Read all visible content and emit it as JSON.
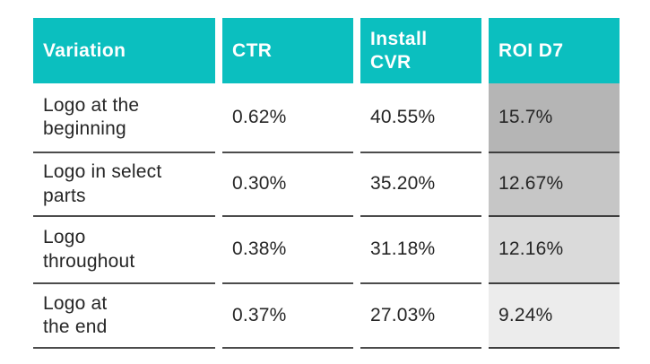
{
  "table": {
    "colors": {
      "header_bg": "#0bbfbf",
      "header_text": "#ffffff",
      "body_text": "#262626",
      "divider": "#4c4c4c",
      "roi_shade_row1": "#b5b5b5",
      "roi_shade_row2": "#c6c6c6",
      "roi_shade_row3": "#dadada",
      "roi_shade_row4": "#ececec"
    },
    "columns": {
      "variation": "Variation",
      "ctr": "CTR",
      "install_cvr": "Install\nCVR",
      "roi_d7": "ROI D7"
    },
    "rows": [
      {
        "variation": "Logo at the\nbeginning",
        "ctr": "0.62%",
        "install_cvr": "40.55%",
        "roi_d7": "15.7%",
        "roi_shade": "#b5b5b5"
      },
      {
        "variation": "Logo in select\nparts",
        "ctr": "0.30%",
        "install_cvr": "35.20%",
        "roi_d7": "12.67%",
        "roi_shade": "#c6c6c6"
      },
      {
        "variation": "Logo\nthroughout",
        "ctr": "0.38%",
        "install_cvr": "31.18%",
        "roi_d7": "12.16%",
        "roi_shade": "#dadada"
      },
      {
        "variation": "Logo at\nthe end",
        "ctr": "0.37%",
        "install_cvr": "27.03%",
        "roi_d7": "9.24%",
        "roi_shade": "#ececec"
      }
    ]
  },
  "chart_data": {
    "type": "table",
    "title": "",
    "columns": [
      "Variation",
      "CTR",
      "Install CVR",
      "ROI D7"
    ],
    "rows": [
      [
        "Logo at the beginning",
        "0.62%",
        "40.55%",
        "15.7%"
      ],
      [
        "Logo in select parts",
        "0.30%",
        "35.20%",
        "12.67%"
      ],
      [
        "Logo throughout",
        "0.38%",
        "31.18%",
        "12.16%"
      ],
      [
        "Logo at the end",
        "0.37%",
        "27.03%",
        "9.24%"
      ]
    ],
    "notes": "ROI D7 column shaded gray, darkest at highest value fading to lightest at lowest value"
  }
}
